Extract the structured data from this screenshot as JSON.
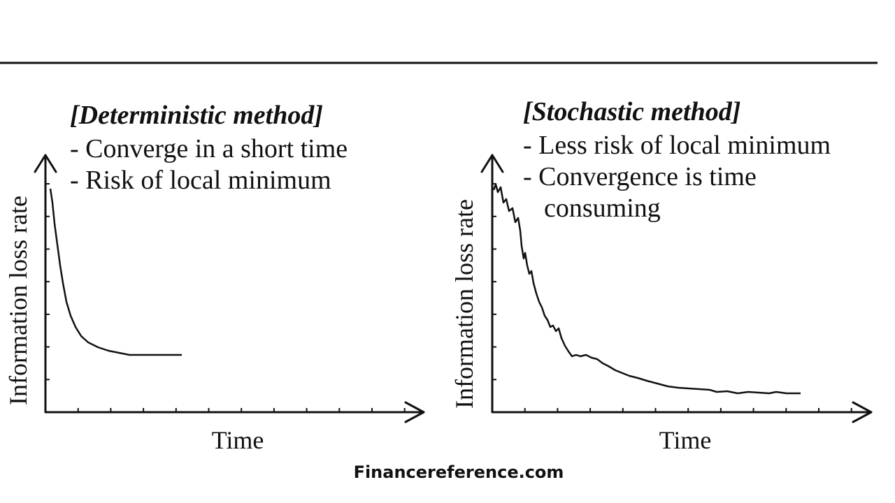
{
  "panels": [
    {
      "title": "[Deterministic method]",
      "bullets": [
        "- Converge in a short time",
        "- Risk of local minimum"
      ],
      "y_label": "Information loss rate",
      "x_label": "Time"
    },
    {
      "title": "[Stochastic method]",
      "bullets": [
        "- Less risk of local minimum",
        "- Convergence is time",
        "consuming"
      ],
      "y_label": "Information loss rate",
      "x_label": "Time"
    }
  ],
  "footer": "Financereference.com"
}
